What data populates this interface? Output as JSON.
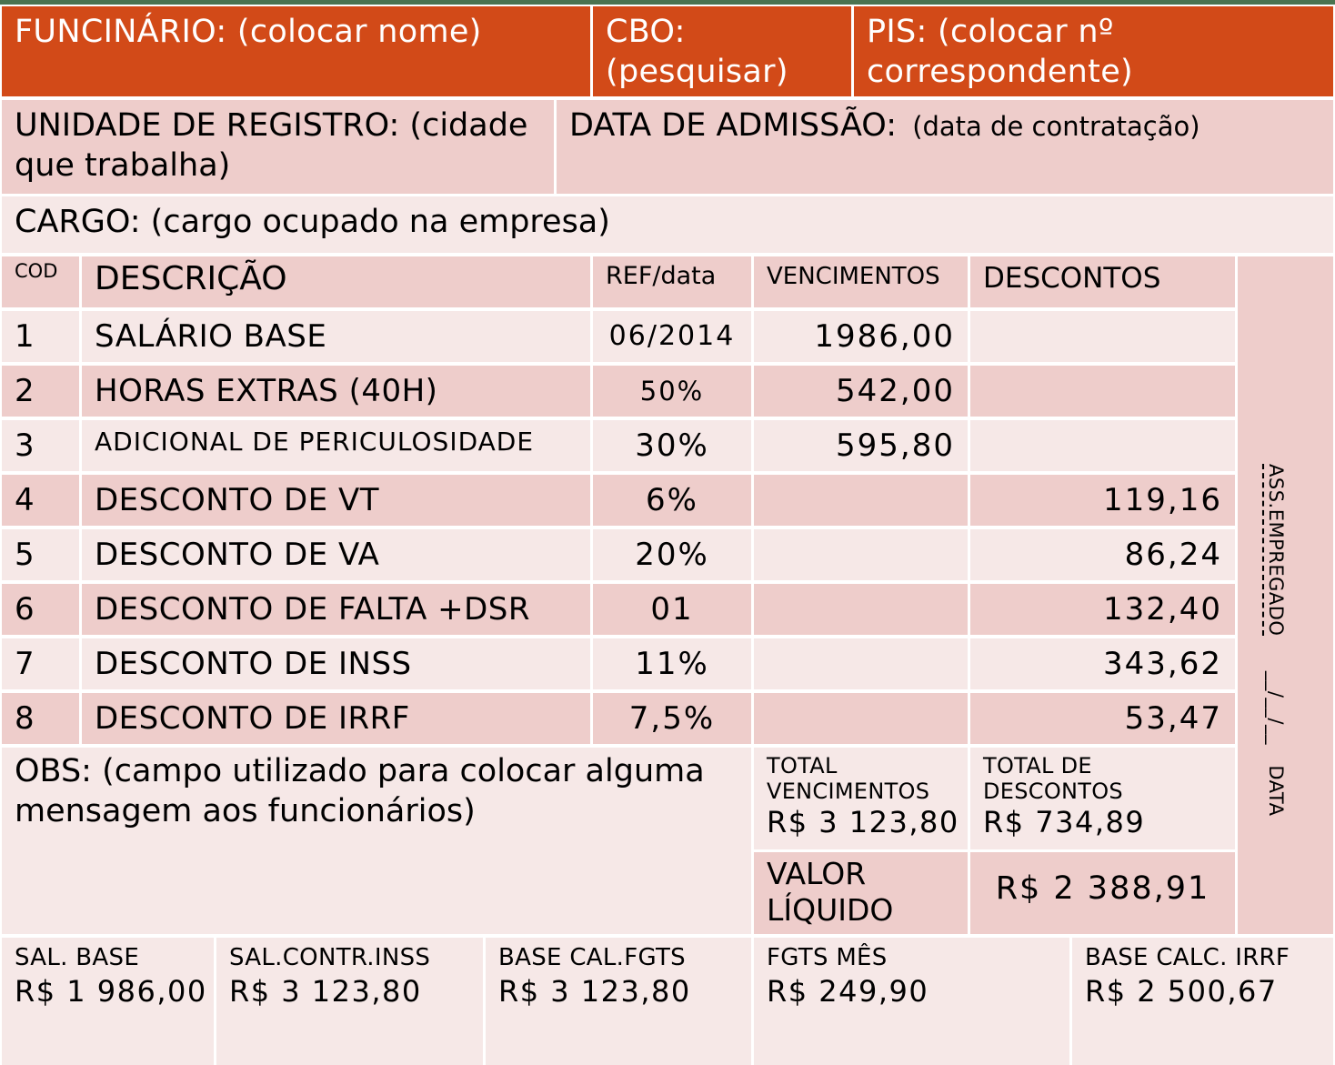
{
  "header": {
    "funcionario": "FUNCINÁRIO: (colocar nome)",
    "cbo_line1": "CBO:",
    "cbo_line2": "(pesquisar)",
    "pis_line1": "PIS: (colocar nº",
    "pis_line2": "correspondente)"
  },
  "info": {
    "unidade_line1": "UNIDADE DE REGISTRO: (cidade",
    "unidade_line2": "que trabalha)",
    "admissao_label": "DATA DE ADMISSÃO:",
    "admissao_hint": "(data de contratação)",
    "cargo": "CARGO: (cargo ocupado na empresa)"
  },
  "table": {
    "columns": {
      "cod": "COD",
      "descricao": "DESCRIÇÃO",
      "ref": "REF/data",
      "vencimentos": "VENCIMENTOS",
      "descontos": "DESCONTOS"
    },
    "rows": [
      {
        "cod": "1",
        "descricao": "SALÁRIO BASE",
        "ref": "06/2014",
        "vencimento": "1986,00",
        "desconto": ""
      },
      {
        "cod": "2",
        "descricao": "HORAS EXTRAS (40H)",
        "ref": "50%",
        "vencimento": "542,00",
        "desconto": ""
      },
      {
        "cod": "3",
        "descricao": "ADICIONAL DE PERICULOSIDADE",
        "ref": "30%",
        "vencimento": "595,80",
        "desconto": ""
      },
      {
        "cod": "4",
        "descricao": "DESCONTO DE VT",
        "ref": "6%",
        "vencimento": "",
        "desconto": "119,16"
      },
      {
        "cod": "5",
        "descricao": "DESCONTO DE VA",
        "ref": "20%",
        "vencimento": "",
        "desconto": "86,24"
      },
      {
        "cod": "6",
        "descricao": "DESCONTO DE FALTA +DSR",
        "ref": "01",
        "vencimento": "",
        "desconto": "132,40"
      },
      {
        "cod": "7",
        "descricao": "DESCONTO DE INSS",
        "ref": "11%",
        "vencimento": "",
        "desconto": "343,62"
      },
      {
        "cod": "8",
        "descricao": "DESCONTO DE IRRF",
        "ref": "7,5%",
        "vencimento": "",
        "desconto": "53,47"
      }
    ]
  },
  "signature": {
    "line": "-------------------",
    "label": "ASS.EMPREGADO",
    "date_line": "__/__/__",
    "date_label": "DATA"
  },
  "obs": {
    "line1": "OBS: (campo utilizado para colocar alguma",
    "line2": "mensagem aos funcionários)"
  },
  "totals": {
    "vencimentos_label1": "TOTAL",
    "vencimentos_label2": "VENCIMENTOS",
    "vencimentos_value": "R$ 3 123,80",
    "descontos_label1": "TOTAL DE",
    "descontos_label2": "DESCONTOS",
    "descontos_value": "R$ 734,89",
    "liquido_label1": "VALOR",
    "liquido_label2": "LÍQUIDO",
    "liquido_value": "R$ 2 388,91"
  },
  "footer": [
    {
      "label": "SAL. BASE",
      "value": "R$ 1 986,00"
    },
    {
      "label": "SAL.CONTR.INSS",
      "value": "R$ 3 123,80"
    },
    {
      "label": "BASE CAL.FGTS",
      "value": "R$ 3 123,80"
    },
    {
      "label": "FGTS MÊS",
      "value": "R$ 249,90"
    },
    {
      "label": "BASE CALC. IRRF",
      "value": "R$ 2 500,67"
    }
  ],
  "colors": {
    "header_orange": "#d24a18",
    "row_dark": "#eecdcb",
    "row_light": "#f6e8e7",
    "top_bar_green": "#4a7350"
  }
}
